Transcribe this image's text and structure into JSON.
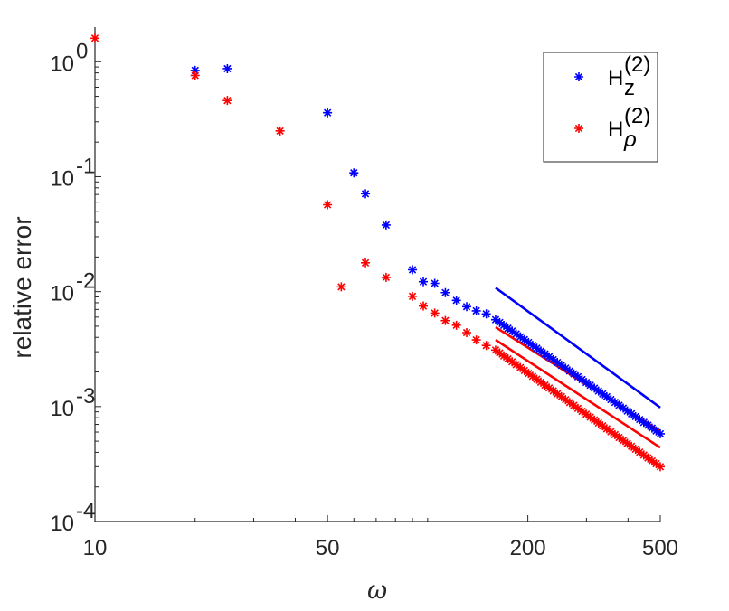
{
  "chart_data": {
    "type": "scatter",
    "xscale": "log",
    "yscale": "log",
    "xlim": [
      10,
      500
    ],
    "ylim": [
      0.0001,
      2
    ],
    "xlabel": "ω",
    "ylabel": "relative error",
    "xticks": [
      10,
      50,
      200,
      500
    ],
    "xtick_labels": [
      "10",
      "50",
      "200",
      "500"
    ],
    "yticks": [
      0.0001,
      0.001,
      0.01,
      0.1,
      1
    ],
    "ytick_labels": [
      {
        "base": "10",
        "exp": "-4"
      },
      {
        "base": "10",
        "exp": "-3"
      },
      {
        "base": "10",
        "exp": "-2"
      },
      {
        "base": "10",
        "exp": "-1"
      },
      {
        "base": "10",
        "exp": "0"
      }
    ],
    "legend_position": "top-right",
    "colors": {
      "blue": "#0000ff",
      "red": "#ff0000"
    },
    "series": [
      {
        "name": "Hz(2)",
        "legend_base": "H",
        "legend_sub": "z",
        "legend_sup": "(2)",
        "color": "#0000ff",
        "marker": "asterisk",
        "points": [
          [
            20,
            0.84
          ],
          [
            25,
            0.87
          ],
          [
            50,
            0.36
          ],
          [
            60,
            0.108
          ],
          [
            65,
            0.071
          ],
          [
            75,
            0.038
          ],
          [
            90,
            0.0155
          ],
          [
            97,
            0.0122
          ],
          [
            105,
            0.0118
          ],
          [
            113,
            0.0098
          ],
          [
            122,
            0.0084
          ],
          [
            131,
            0.0074
          ],
          [
            140,
            0.0068
          ],
          [
            150,
            0.0064
          ],
          [
            160,
            0.0057
          ]
        ],
        "dense_range": {
          "x_start": 160,
          "x_end": 500,
          "count": 40,
          "y_start": 0.0057,
          "y_end": 0.00058
        }
      },
      {
        "name": "Hρ(2)",
        "legend_base": "H",
        "legend_sub": "ρ",
        "legend_sup": "(2)",
        "color": "#ff0000",
        "marker": "asterisk",
        "points": [
          [
            10,
            1.6
          ],
          [
            20,
            0.76
          ],
          [
            25,
            0.46
          ],
          [
            36,
            0.25
          ],
          [
            50,
            0.057
          ],
          [
            55,
            0.011
          ],
          [
            65,
            0.0178
          ],
          [
            75,
            0.0133
          ],
          [
            90,
            0.0091
          ],
          [
            97,
            0.0075
          ],
          [
            105,
            0.0065
          ],
          [
            113,
            0.0056
          ],
          [
            122,
            0.0051
          ],
          [
            131,
            0.0044
          ],
          [
            140,
            0.0038
          ],
          [
            150,
            0.0034
          ],
          [
            160,
            0.0031
          ]
        ],
        "dense_range": {
          "x_start": 160,
          "x_end": 500,
          "count": 40,
          "y_start": 0.0031,
          "y_end": 0.0003
        }
      }
    ],
    "reference_lines": [
      {
        "name": "blue-slope-line",
        "color": "#0000ff",
        "x": [
          160,
          500
        ],
        "y": [
          0.0108,
          0.00098
        ]
      },
      {
        "name": "red-slope-line-upper",
        "color": "#ff0000",
        "x": [
          160,
          500
        ],
        "y": [
          0.0049,
          0.00061
        ]
      },
      {
        "name": "red-slope-line-lower",
        "color": "#ff0000",
        "x": [
          160,
          500
        ],
        "y": [
          0.0038,
          0.00044
        ]
      }
    ]
  }
}
